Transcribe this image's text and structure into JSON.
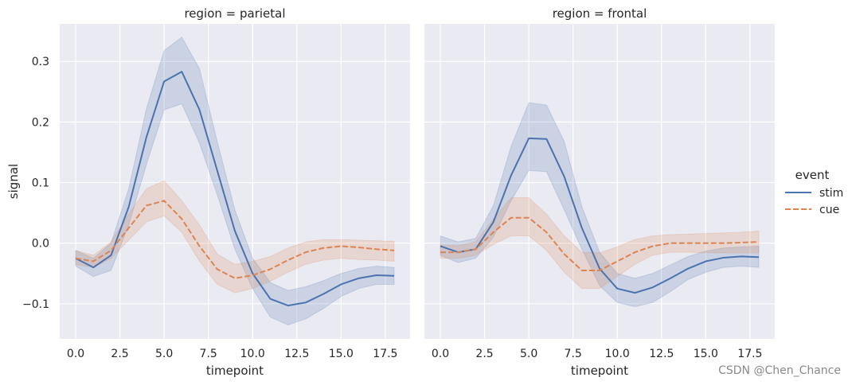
{
  "colors": {
    "stim": "#4c72b0",
    "cue": "#dd8452",
    "panel_background": "#eaeaf2",
    "grid": "#ffffff"
  },
  "watermark": "CSDN @Chen_Chance",
  "chart_data": {
    "type": "line",
    "x": [
      0,
      1,
      2,
      3,
      4,
      5,
      6,
      7,
      8,
      9,
      10,
      11,
      12,
      13,
      14,
      15,
      16,
      17,
      18
    ],
    "xlabel": "timepoint",
    "ylabel": "signal",
    "xlim": [
      -0.9,
      18.9
    ],
    "ylim": [
      -0.158,
      0.362
    ],
    "xticks": [
      0.0,
      2.5,
      5.0,
      7.5,
      10.0,
      12.5,
      15.0,
      17.5
    ],
    "xtick_labels": [
      "0.0",
      "2.5",
      "5.0",
      "7.5",
      "10.0",
      "12.5",
      "15.0",
      "17.5"
    ],
    "yticks": [
      -0.1,
      0.0,
      0.1,
      0.2,
      0.3
    ],
    "ytick_labels": [
      "−0.1",
      "0.0",
      "0.1",
      "0.2",
      "0.3"
    ],
    "grid": true,
    "legend": {
      "title": "event",
      "placement": "right",
      "entries": [
        {
          "name": "stim",
          "style": "solid"
        },
        {
          "name": "cue",
          "style": "dashed"
        }
      ]
    },
    "panels": [
      {
        "title": "region = parietal",
        "series": [
          {
            "name": "stim",
            "values": [
              -0.025,
              -0.04,
              -0.02,
              0.06,
              0.175,
              0.267,
              0.283,
              0.22,
              0.12,
              0.02,
              -0.05,
              -0.092,
              -0.103,
              -0.098,
              -0.084,
              -0.068,
              -0.058,
              -0.053,
              -0.054
            ],
            "lower": [
              -0.038,
              -0.055,
              -0.045,
              0.03,
              0.13,
              0.22,
              0.23,
              0.165,
              0.08,
              -0.01,
              -0.075,
              -0.122,
              -0.135,
              -0.125,
              -0.108,
              -0.088,
              -0.075,
              -0.068,
              -0.068
            ],
            "upper": [
              -0.012,
              -0.025,
              0.0,
              0.09,
              0.222,
              0.318,
              0.34,
              0.288,
              0.168,
              0.055,
              -0.025,
              -0.065,
              -0.078,
              -0.072,
              -0.062,
              -0.05,
              -0.042,
              -0.038,
              -0.04
            ]
          },
          {
            "name": "cue",
            "values": [
              -0.025,
              -0.03,
              -0.012,
              0.025,
              0.062,
              0.07,
              0.04,
              -0.005,
              -0.043,
              -0.058,
              -0.053,
              -0.043,
              -0.028,
              -0.015,
              -0.008,
              -0.005,
              -0.007,
              -0.01,
              -0.012
            ],
            "lower": [
              -0.035,
              -0.04,
              -0.025,
              0.005,
              0.035,
              0.045,
              0.018,
              -0.03,
              -0.068,
              -0.082,
              -0.075,
              -0.063,
              -0.048,
              -0.035,
              -0.028,
              -0.025,
              -0.027,
              -0.028,
              -0.03
            ],
            "upper": [
              -0.012,
              -0.02,
              0.002,
              0.048,
              0.09,
              0.103,
              0.07,
              0.03,
              -0.018,
              -0.035,
              -0.03,
              -0.022,
              -0.008,
              0.002,
              0.006,
              0.006,
              0.005,
              0.004,
              0.003
            ]
          }
        ]
      },
      {
        "title": "region = frontal",
        "series": [
          {
            "name": "stim",
            "values": [
              -0.005,
              -0.015,
              -0.01,
              0.035,
              0.112,
              0.173,
              0.172,
              0.11,
              0.025,
              -0.042,
              -0.075,
              -0.082,
              -0.073,
              -0.058,
              -0.042,
              -0.03,
              -0.024,
              -0.022,
              -0.023
            ],
            "lower": [
              -0.02,
              -0.032,
              -0.025,
              0.01,
              0.07,
              0.12,
              0.118,
              0.055,
              -0.01,
              -0.07,
              -0.098,
              -0.105,
              -0.098,
              -0.08,
              -0.06,
              -0.048,
              -0.04,
              -0.038,
              -0.04
            ],
            "upper": [
              0.012,
              0.002,
              0.008,
              0.062,
              0.16,
              0.232,
              0.228,
              0.168,
              0.06,
              -0.015,
              -0.05,
              -0.058,
              -0.05,
              -0.036,
              -0.022,
              -0.013,
              -0.008,
              -0.006,
              -0.005
            ]
          },
          {
            "name": "cue",
            "values": [
              -0.015,
              -0.015,
              -0.01,
              0.018,
              0.042,
              0.042,
              0.018,
              -0.018,
              -0.045,
              -0.045,
              -0.03,
              -0.015,
              -0.005,
              0.0,
              0.0,
              0.0,
              0.0,
              0.001,
              0.002
            ],
            "lower": [
              -0.025,
              -0.025,
              -0.02,
              -0.002,
              0.012,
              0.012,
              -0.012,
              -0.048,
              -0.075,
              -0.075,
              -0.055,
              -0.035,
              -0.02,
              -0.015,
              -0.015,
              -0.016,
              -0.016,
              -0.016,
              -0.016
            ],
            "upper": [
              -0.003,
              -0.004,
              0.002,
              0.04,
              0.075,
              0.075,
              0.048,
              0.012,
              -0.015,
              -0.016,
              -0.006,
              0.006,
              0.012,
              0.014,
              0.015,
              0.016,
              0.017,
              0.018,
              0.02
            ]
          }
        ]
      }
    ]
  }
}
